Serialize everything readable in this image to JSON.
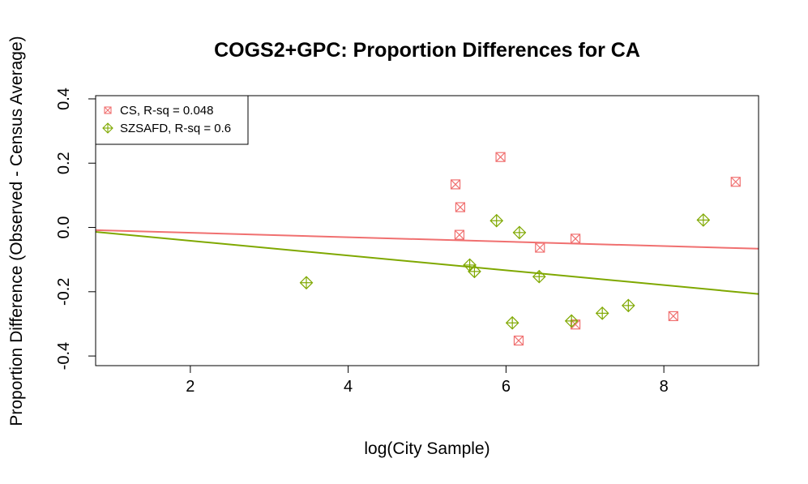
{
  "chart_data": {
    "type": "scatter",
    "title": "COGS2+GPC: Proportion Differences for CA",
    "xlabel": "log(City Sample)",
    "ylabel": "Proportion Difference (Observed - Census Average)",
    "xlim": [
      0.8,
      9.2
    ],
    "ylim": [
      -0.43,
      0.41
    ],
    "x_ticks": [
      2,
      4,
      6,
      8
    ],
    "y_ticks": [
      -0.4,
      -0.2,
      0.0,
      0.2,
      0.4
    ],
    "y_tick_labels": [
      "-0.4",
      "-0.2",
      "0.0",
      "0.2",
      "0.4"
    ],
    "legend_position": "top-left",
    "series": [
      {
        "name": "CS, R-sq = 0.048",
        "marker": "square-x",
        "color": "#F07070",
        "x": [
          5.36,
          5.42,
          5.41,
          5.93,
          6.43,
          6.88,
          6.88,
          6.16,
          8.12,
          8.91
        ],
        "y": [
          0.134,
          0.063,
          -0.023,
          0.219,
          -0.063,
          -0.035,
          -0.302,
          -0.352,
          -0.276,
          0.142
        ],
        "fit": {
          "intercept": -0.0028,
          "slope": -0.0069
        }
      },
      {
        "name": "SZSAFD, R-sq = 0.6",
        "marker": "diamond-plus",
        "color": "#7FA800",
        "x": [
          3.47,
          5.54,
          5.6,
          5.88,
          6.17,
          6.08,
          6.42,
          6.83,
          7.22,
          7.55,
          8.5
        ],
        "y": [
          -0.172,
          -0.117,
          -0.137,
          0.021,
          -0.016,
          -0.297,
          -0.153,
          -0.291,
          -0.267,
          -0.243,
          0.023
        ],
        "fit": {
          "intercept": 0.0046,
          "slope": -0.023
        }
      }
    ]
  }
}
